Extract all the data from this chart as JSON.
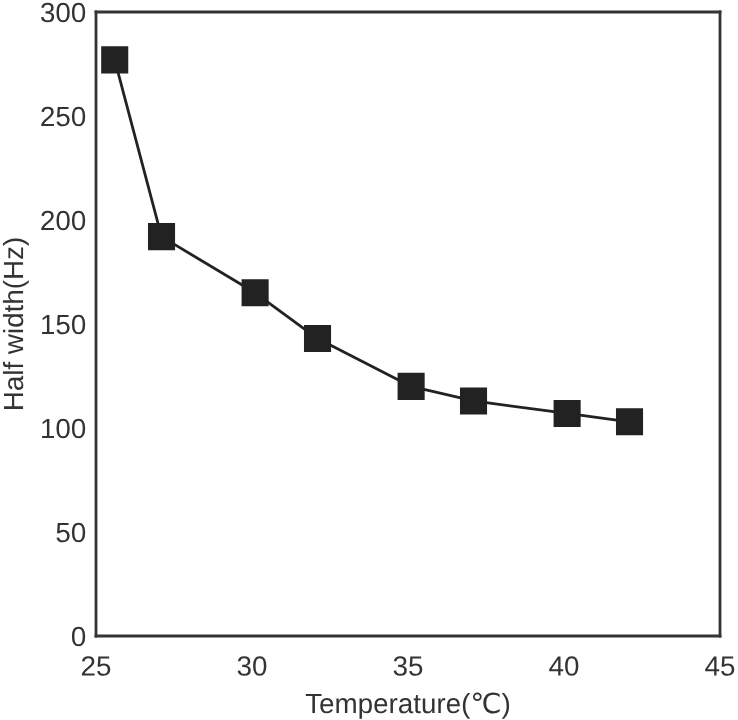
{
  "chart_data": {
    "type": "line",
    "xlabel": "Temperature(℃)",
    "ylabel": "Half width(Hz)",
    "x": [
      25.6,
      27.1,
      30.1,
      32.1,
      35.1,
      37.1,
      40.1,
      42.1
    ],
    "series": [
      {
        "color": "#222222",
        "values": [
          277,
          192,
          165,
          143,
          120,
          113,
          107,
          103
        ]
      }
    ],
    "xlim": [
      25,
      45
    ],
    "xticks": [
      25,
      30,
      35,
      40,
      45
    ],
    "ylim": [
      0,
      300
    ],
    "yticks": [
      0,
      50,
      100,
      150,
      200,
      250,
      300
    ],
    "marker": "square",
    "line_style": "solid"
  }
}
